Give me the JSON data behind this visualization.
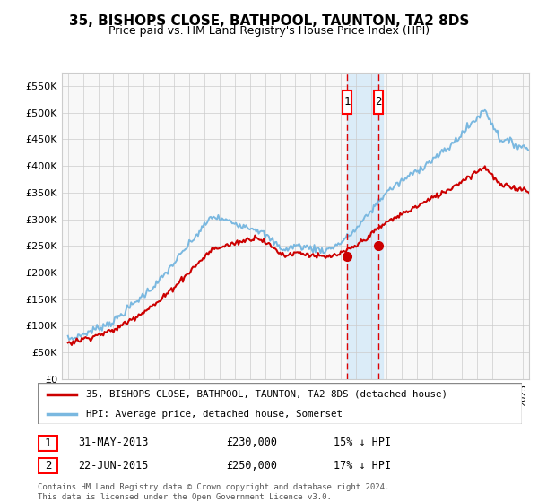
{
  "title": "35, BISHOPS CLOSE, BATHPOOL, TAUNTON, TA2 8DS",
  "subtitle": "Price paid vs. HM Land Registry's House Price Index (HPI)",
  "legend_line1": "35, BISHOPS CLOSE, BATHPOOL, TAUNTON, TA2 8DS (detached house)",
  "legend_line2": "HPI: Average price, detached house, Somerset",
  "transaction1_date": "31-MAY-2013",
  "transaction1_price": "£230,000",
  "transaction1_label": "15% ↓ HPI",
  "transaction2_date": "22-JUN-2015",
  "transaction2_price": "£250,000",
  "transaction2_label": "17% ↓ HPI",
  "footnote1": "Contains HM Land Registry data © Crown copyright and database right 2024.",
  "footnote2": "This data is licensed under the Open Government Licence v3.0.",
  "hpi_color": "#7ab8e0",
  "price_color": "#cc0000",
  "vline_color": "#dd0000",
  "vshade_color": "#d0e8f8",
  "bg_color": "#f8f8f8",
  "ylim": [
    0,
    575000
  ],
  "yticks": [
    0,
    50000,
    100000,
    150000,
    200000,
    250000,
    300000,
    350000,
    400000,
    450000,
    500000,
    550000
  ],
  "t1_year": 2013.413,
  "t2_year": 2015.473,
  "t1_price": 230000,
  "t2_price": 250000
}
